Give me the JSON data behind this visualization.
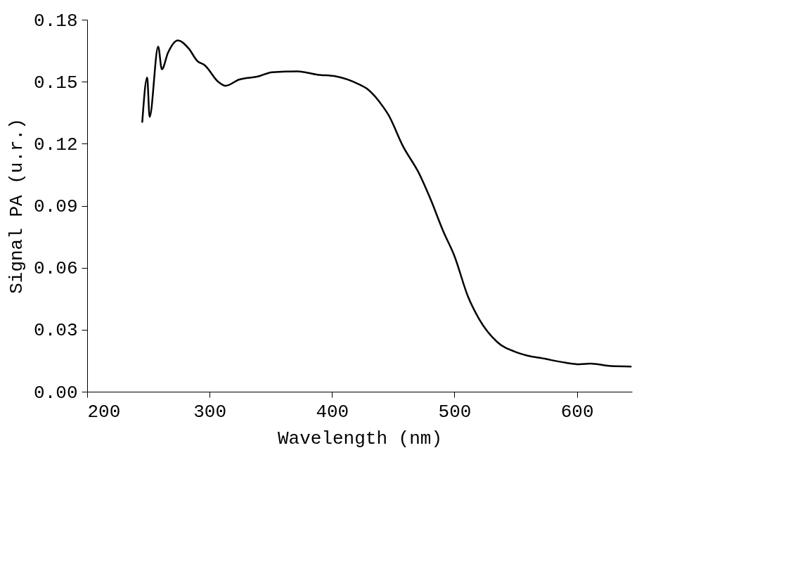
{
  "chart_data": {
    "type": "line",
    "xlabel": "Wavelength (nm)",
    "ylabel": "Signal PA (u.r.)",
    "xlim": [
      200,
      645
    ],
    "xticks": [
      200,
      300,
      400,
      500,
      600
    ],
    "ylim": [
      0,
      0.18
    ],
    "yticks": [
      {
        "value": 0,
        "label": "0.00"
      },
      {
        "value": 0.03,
        "label": "0.03"
      },
      {
        "value": 0.06,
        "label": "0.06"
      },
      {
        "value": 0.09,
        "label": "0.09"
      },
      {
        "value": 0.12,
        "label": "0.12"
      },
      {
        "value": 0.15,
        "label": "0.15"
      },
      {
        "value": 0.18,
        "label": "0.18"
      }
    ],
    "grid": false,
    "marker": "none",
    "line_style": "solid",
    "series": [
      {
        "color": "#000000",
        "x": [
          245,
          249,
          251,
          258,
          261,
          266,
          274,
          283,
          290,
          296,
          307,
          313,
          324,
          340,
          351,
          372,
          388,
          403,
          421,
          429,
          442,
          446,
          458,
          471,
          480,
          491,
          500,
          511,
          520,
          535,
          553,
          575,
          590,
          602,
          611,
          628,
          644
        ],
        "values": [
          0.1305,
          0.152,
          0.133,
          0.167,
          0.156,
          0.164,
          0.17,
          0.166,
          0.16,
          0.158,
          0.15,
          0.148,
          0.151,
          0.1526,
          0.1546,
          0.155,
          0.1534,
          0.1526,
          0.149,
          0.1464,
          0.1376,
          0.134,
          0.1187,
          0.1057,
          0.0938,
          0.0774,
          0.0656,
          0.0461,
          0.0353,
          0.024,
          0.0186,
          0.0158,
          0.0141,
          0.0133,
          0.0136,
          0.0124,
          0.0122
        ]
      }
    ]
  }
}
